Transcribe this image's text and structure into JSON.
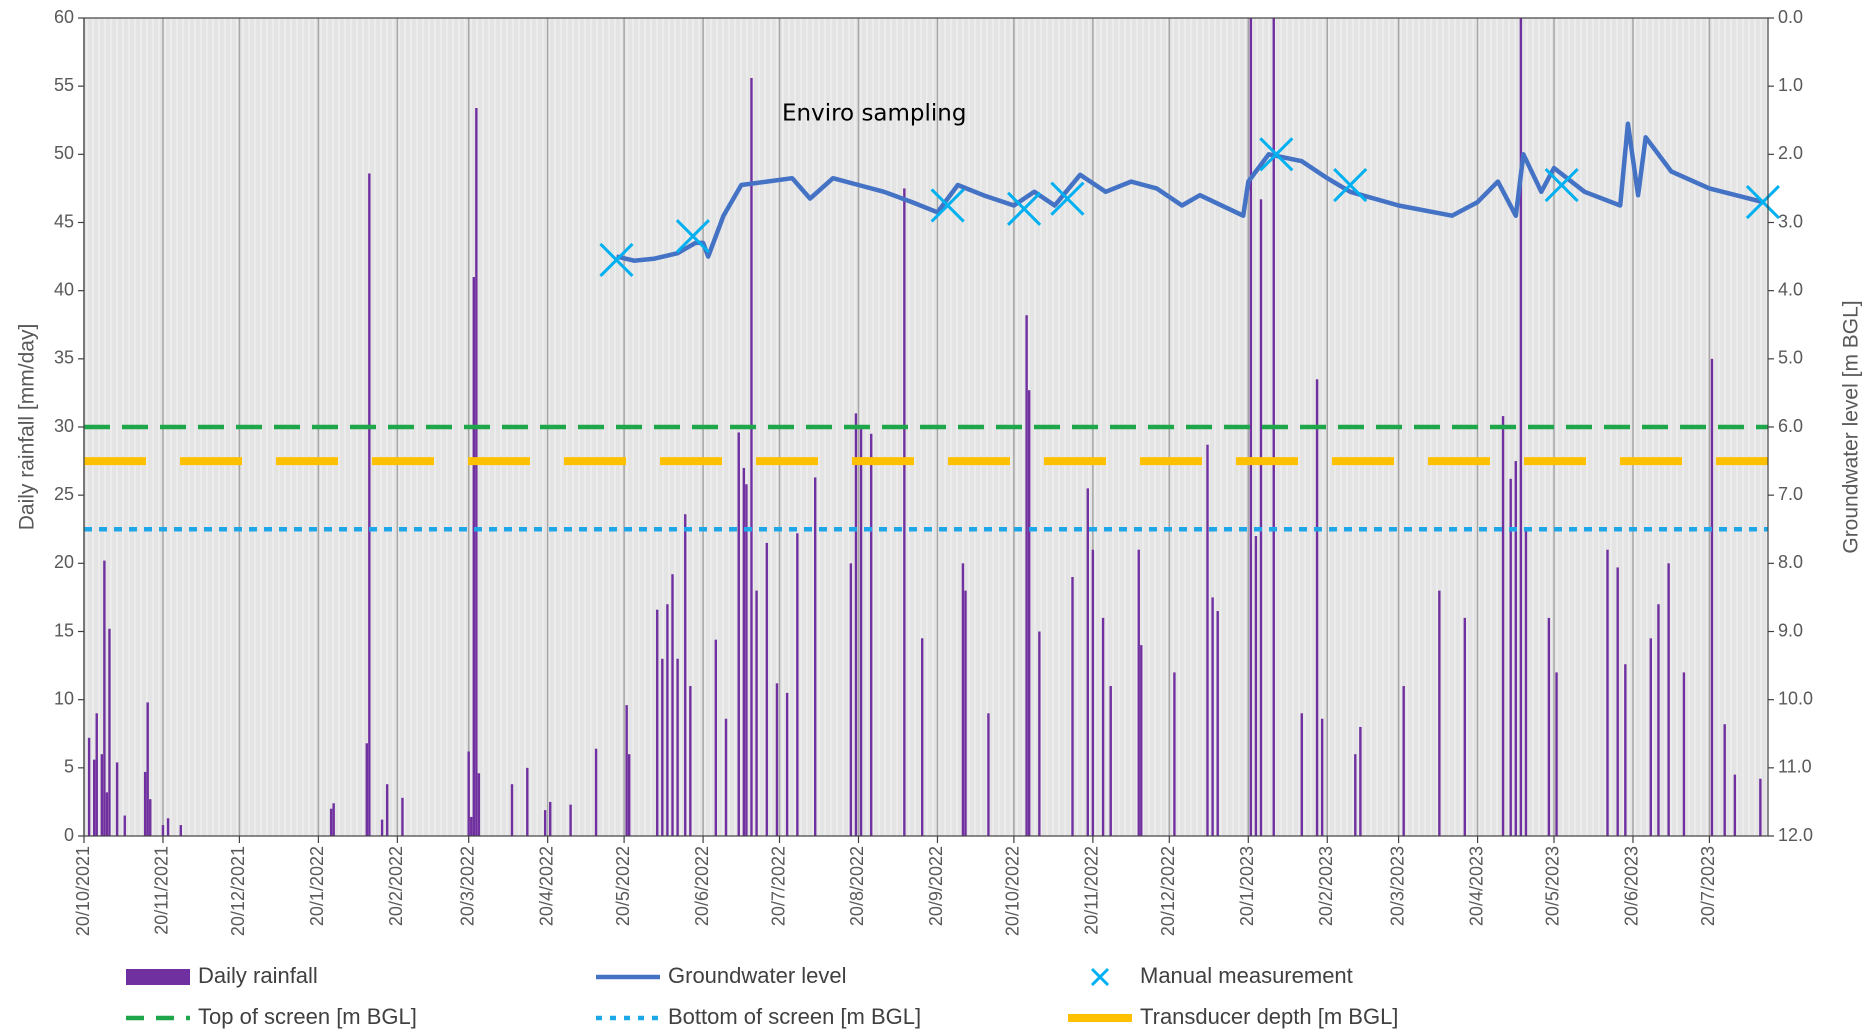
{
  "chart_data": {
    "type": "combo",
    "annotation": "Enviro sampling",
    "ylabel": "Daily rainfall [mm/day]",
    "y2label": "Groundwater level [m BGL]",
    "xlim": [
      "2021-10-20",
      "2023-08-12"
    ],
    "xticks": [
      {
        "value": "2021-10-20",
        "label": "20/10/2021"
      },
      {
        "value": "2021-11-20",
        "label": "20/11/2021"
      },
      {
        "value": "2021-12-20",
        "label": "20/12/2021"
      },
      {
        "value": "2022-01-20",
        "label": "20/1/2022"
      },
      {
        "value": "2022-02-20",
        "label": "20/2/2022"
      },
      {
        "value": "2022-03-20",
        "label": "20/3/2022"
      },
      {
        "value": "2022-04-20",
        "label": "20/4/2022"
      },
      {
        "value": "2022-05-20",
        "label": "20/5/2022"
      },
      {
        "value": "2022-06-20",
        "label": "20/6/2022"
      },
      {
        "value": "2022-07-20",
        "label": "20/7/2022"
      },
      {
        "value": "2022-08-20",
        "label": "20/8/2022"
      },
      {
        "value": "2022-09-20",
        "label": "20/9/2022"
      },
      {
        "value": "2022-10-20",
        "label": "20/10/2022"
      },
      {
        "value": "2022-11-20",
        "label": "20/11/2022"
      },
      {
        "value": "2022-12-20",
        "label": "20/12/2022"
      },
      {
        "value": "2023-01-20",
        "label": "20/1/2023"
      },
      {
        "value": "2023-02-20",
        "label": "20/2/2023"
      },
      {
        "value": "2023-03-20",
        "label": "20/3/2023"
      },
      {
        "value": "2023-04-20",
        "label": "20/4/2023"
      },
      {
        "value": "2023-05-20",
        "label": "20/5/2023"
      },
      {
        "value": "2023-06-20",
        "label": "20/6/2023"
      },
      {
        "value": "2023-07-20",
        "label": "20/7/2023"
      }
    ],
    "ylim": [
      0,
      60
    ],
    "yticks": [
      0,
      5,
      10,
      15,
      20,
      25,
      30,
      35,
      40,
      45,
      50,
      55,
      60
    ],
    "y2lim": [
      0,
      12
    ],
    "y2_inverted": true,
    "y2ticks": [
      {
        "value": 0,
        "label": "0.0"
      },
      {
        "value": 1,
        "label": "1.0"
      },
      {
        "value": 2,
        "label": "2.0"
      },
      {
        "value": 3,
        "label": "3.0"
      },
      {
        "value": 4,
        "label": "4.0"
      },
      {
        "value": 5,
        "label": "5.0"
      },
      {
        "value": 6,
        "label": "6.0"
      },
      {
        "value": 7,
        "label": "7.0"
      },
      {
        "value": 8,
        "label": "8.0"
      },
      {
        "value": 9,
        "label": "9.0"
      },
      {
        "value": 10,
        "label": "10.0"
      },
      {
        "value": 11,
        "label": "11.0"
      },
      {
        "value": 12,
        "label": "12.0"
      }
    ],
    "grid": true,
    "series": [
      {
        "name": "Daily rainfall",
        "type": "bar",
        "color": "#7030a0",
        "x": [
          "2021-10-22",
          "2021-10-24",
          "2021-10-25",
          "2021-10-27",
          "2021-10-28",
          "2021-10-29",
          "2021-10-30",
          "2021-11-02",
          "2021-11-05",
          "2021-11-13",
          "2021-11-14",
          "2021-11-15",
          "2021-11-20",
          "2021-11-22",
          "2021-11-27",
          "2022-01-25",
          "2022-01-26",
          "2022-02-08",
          "2022-02-09",
          "2022-02-14",
          "2022-02-16",
          "2022-02-22",
          "2022-03-20",
          "2022-03-21",
          "2022-03-22",
          "2022-03-23",
          "2022-03-24",
          "2022-04-06",
          "2022-04-12",
          "2022-04-19",
          "2022-04-21",
          "2022-04-29",
          "2022-05-09",
          "2022-05-21",
          "2022-05-22",
          "2022-06-02",
          "2022-06-04",
          "2022-06-06",
          "2022-06-08",
          "2022-06-10",
          "2022-06-13",
          "2022-06-15",
          "2022-06-25",
          "2022-06-29",
          "2022-07-04",
          "2022-07-06",
          "2022-07-07",
          "2022-07-09",
          "2022-07-11",
          "2022-07-15",
          "2022-07-19",
          "2022-07-23",
          "2022-07-27",
          "2022-08-03",
          "2022-08-17",
          "2022-08-19",
          "2022-08-21",
          "2022-08-25",
          "2022-09-07",
          "2022-09-14",
          "2022-09-30",
          "2022-10-01",
          "2022-10-10",
          "2022-10-25",
          "2022-10-26",
          "2022-10-30",
          "2022-11-12",
          "2022-11-18",
          "2022-11-20",
          "2022-11-24",
          "2022-11-27",
          "2022-12-08",
          "2022-12-09",
          "2022-12-22",
          "2023-01-04",
          "2023-01-06",
          "2023-01-08",
          "2023-01-21",
          "2023-01-23",
          "2023-01-25",
          "2023-01-30",
          "2023-02-10",
          "2023-02-16",
          "2023-02-18",
          "2023-03-03",
          "2023-03-05",
          "2023-03-22",
          "2023-04-05",
          "2023-04-15",
          "2023-04-30",
          "2023-05-03",
          "2023-05-05",
          "2023-05-07",
          "2023-05-09",
          "2023-05-18",
          "2023-05-21",
          "2023-06-10",
          "2023-06-14",
          "2023-06-17",
          "2023-06-27",
          "2023-06-30",
          "2023-07-04",
          "2023-07-10",
          "2023-07-21",
          "2023-07-26",
          "2023-07-30",
          "2023-08-09"
        ],
        "values": [
          7.2,
          5.6,
          9,
          6,
          20.2,
          3.2,
          15.2,
          5.4,
          1.5,
          4.7,
          9.8,
          2.7,
          0.8,
          1.3,
          0.8,
          2,
          2.4,
          6.8,
          48.6,
          1.2,
          3.8,
          2.8,
          6.2,
          1.4,
          41,
          53.4,
          4.6,
          3.8,
          5,
          1.9,
          2.5,
          2.3,
          6.4,
          9.6,
          6,
          16.6,
          13,
          17,
          19.2,
          13,
          23.6,
          11,
          14.4,
          8.6,
          29.6,
          27,
          25.8,
          55.6,
          18,
          21.5,
          11.2,
          10.5,
          22.2,
          26.3,
          20,
          31,
          30,
          29.5,
          47.5,
          14.5,
          20,
          18,
          9,
          38.2,
          32.7,
          15,
          19,
          25.5,
          21,
          16,
          11,
          21,
          14,
          12,
          28.7,
          17.5,
          16.5,
          60,
          22,
          46.7,
          60,
          9,
          33.5,
          8.6,
          6,
          8,
          11,
          18,
          16,
          30.8,
          26.2,
          27.5,
          60,
          22.5,
          16,
          12,
          21,
          19.7,
          12.6,
          14.5,
          17,
          20,
          12,
          35,
          8.2,
          4.5,
          4.2
        ]
      },
      {
        "name": "Groundwater level",
        "type": "line",
        "axis": "y2",
        "color": "#4472c4",
        "x": [
          "2022-05-17",
          "2022-05-24",
          "2022-06-01",
          "2022-06-10",
          "2022-06-17",
          "2022-06-20",
          "2022-06-22",
          "2022-06-28",
          "2022-07-05",
          "2022-07-15",
          "2022-07-25",
          "2022-08-01",
          "2022-08-10",
          "2022-08-20",
          "2022-08-30",
          "2022-09-10",
          "2022-09-20",
          "2022-09-28",
          "2022-10-08",
          "2022-10-20",
          "2022-10-28",
          "2022-11-05",
          "2022-11-15",
          "2022-11-25",
          "2022-12-05",
          "2022-12-15",
          "2022-12-25",
          "2023-01-01",
          "2023-01-18",
          "2023-01-20",
          "2023-01-28",
          "2023-02-10",
          "2023-02-20",
          "2023-03-01",
          "2023-03-20",
          "2023-04-10",
          "2023-04-20",
          "2023-04-28",
          "2023-05-05",
          "2023-05-08",
          "2023-05-15",
          "2023-05-20",
          "2023-06-01",
          "2023-06-15",
          "2023-06-18",
          "2023-06-22",
          "2023-06-25",
          "2023-07-05",
          "2023-07-20",
          "2023-08-10"
        ],
        "values": [
          3.5,
          3.56,
          3.53,
          3.45,
          3.3,
          3.3,
          3.5,
          2.9,
          2.45,
          2.4,
          2.35,
          2.65,
          2.35,
          2.45,
          2.55,
          2.7,
          2.85,
          2.45,
          2.6,
          2.75,
          2.55,
          2.75,
          2.3,
          2.55,
          2.4,
          2.5,
          2.75,
          2.6,
          2.9,
          2.4,
          2.0,
          2.1,
          2.35,
          2.55,
          2.75,
          2.9,
          2.7,
          2.4,
          2.9,
          2.0,
          2.55,
          2.2,
          2.55,
          2.75,
          1.55,
          2.6,
          1.75,
          2.25,
          2.5,
          2.7
        ]
      },
      {
        "name": "Manual measurement",
        "type": "scatter",
        "axis": "y2",
        "color": "#00b0f0",
        "x": [
          "2022-05-17",
          "2022-06-16",
          "2022-09-24",
          "2022-10-24",
          "2022-11-10",
          "2023-01-31",
          "2023-03-01",
          "2023-05-23",
          "2023-08-10"
        ],
        "values": [
          3.55,
          3.2,
          2.75,
          2.8,
          2.65,
          2.0,
          2.45,
          2.45,
          2.7
        ]
      },
      {
        "name": "Top of screen [m BGL]",
        "type": "hline",
        "axis": "y2",
        "color": "#1ea64a",
        "style": "dashed",
        "value": 6.0
      },
      {
        "name": "Bottom of screen [m BGL]",
        "type": "hline",
        "axis": "y2",
        "color": "#1ea7e8",
        "style": "dotted",
        "value": 7.5
      },
      {
        "name": "Transducer depth [m BGL]",
        "type": "hline",
        "axis": "y2",
        "color": "#ffc000",
        "style": "longdash",
        "value": 6.5
      }
    ]
  }
}
